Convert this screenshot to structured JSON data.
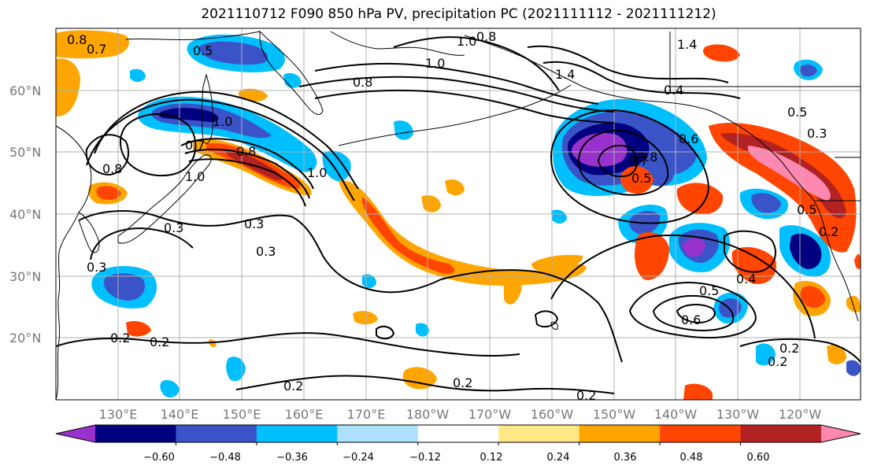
{
  "title": "2021110712 F090 850 hPa PV, precipitation PC (2021111112 - 2021111212)",
  "map": {
    "lat_labels": [
      "60°N",
      "50°N",
      "40°N",
      "30°N",
      "20°N"
    ],
    "lon_labels": [
      "130°E",
      "140°E",
      "150°E",
      "160°E",
      "170°E",
      "180°W",
      "170°W",
      "160°W",
      "150°W",
      "140°W",
      "130°W",
      "120°W"
    ],
    "contour_labels": [
      "0.8",
      "0.7",
      "0.5",
      "1.0",
      "0.8",
      "1.0",
      "0.8",
      "1.4",
      "1.4",
      "0.8",
      "1.0",
      "0.8",
      "1.0",
      "0.7",
      "1.0",
      "0.8",
      "0.3",
      "0.3",
      "0.3",
      "0.3",
      "0.2",
      "0.2",
      "0.2",
      "0.5",
      "0.6",
      "0.7",
      "0.4",
      "0.5",
      "0.3",
      "0.5",
      "0.6",
      "0.5",
      "0.4",
      "0.2",
      "0.2",
      "0.2",
      "0.2",
      "0.2"
    ]
  },
  "colorbar": {
    "ticks": [
      "−0.60",
      "−0.48",
      "−0.36",
      "−0.24",
      "−0.12",
      "0.12",
      "0.24",
      "0.36",
      "0.48",
      "0.60"
    ],
    "colors": [
      "#9932cc",
      "#000080",
      "#3a54c8",
      "#00bfff",
      "#aee1ff",
      "#ffffff",
      "#ffe885",
      "#ffa500",
      "#ff4500",
      "#b22222",
      "#ff88b0"
    ]
  }
}
